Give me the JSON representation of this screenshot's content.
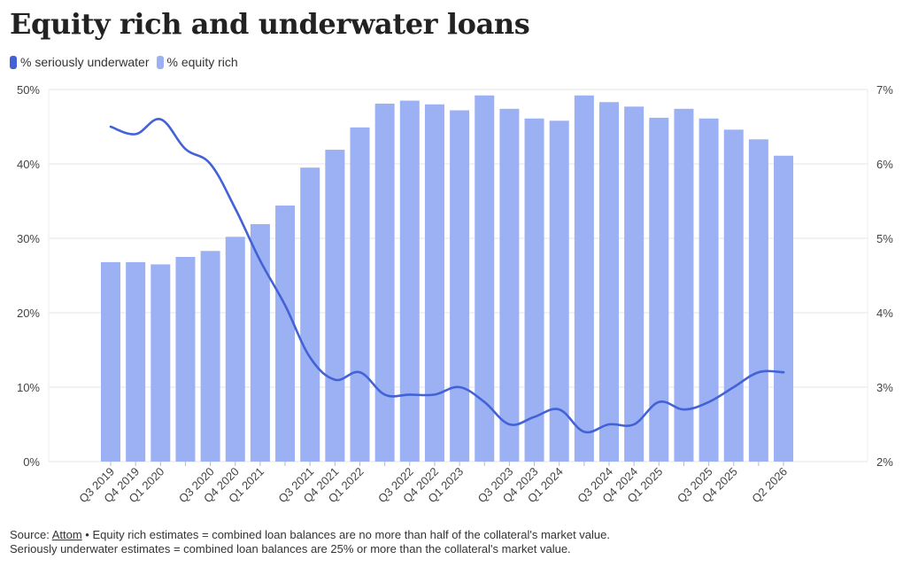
{
  "title": "Equity rich and underwater loans",
  "legend": [
    {
      "label": "% seriously underwater",
      "color": "#4262d6"
    },
    {
      "label": "% equity rich",
      "color": "#9cb0f4"
    }
  ],
  "footer": {
    "source_prefix": "Source: ",
    "source_name": "Attom",
    "line1_rest": " • Equity rich estimates = combined loan balances are no more than half of the collateral's market value.",
    "line2": "Seriously underwater estimates = combined loan balances are 25% or more than the collateral's market value."
  },
  "chart_data": {
    "type": "bar",
    "title": "Equity rich and underwater loans",
    "categories": [
      "Q3 2019",
      "Q4 2019",
      "Q1 2020",
      "Q2 2020",
      "Q3 2020",
      "Q4 2020",
      "Q1 2021",
      "Q2 2021",
      "Q3 2021",
      "Q4 2021",
      "Q1 2022",
      "Q2 2022",
      "Q3 2022",
      "Q4 2022",
      "Q1 2023",
      "Q2 2023",
      "Q3 2023",
      "Q4 2023",
      "Q1 2024",
      "Q2 2024",
      "Q3 2024",
      "Q4 2024",
      "Q1 2025",
      "Q2 2025",
      "Q3 2025",
      "Q4 2025",
      "Q1 2026",
      "Q2 2026"
    ],
    "x_tick_labels": [
      "Q3 2019",
      "Q4 2019",
      "Q1 2020",
      "",
      "Q3 2020",
      "Q4 2020",
      "Q1 2021",
      "",
      "Q3 2021",
      "Q4 2021",
      "Q1 2022",
      "",
      "Q3 2022",
      "Q4 2022",
      "Q1 2023",
      "",
      "Q3 2023",
      "Q4 2023",
      "Q1 2024",
      "",
      "Q3 2024",
      "Q4 2024",
      "Q1 2025",
      "",
      "Q3 2025",
      "Q4 2025",
      "",
      "Q2 2026"
    ],
    "series": [
      {
        "name": "% equity rich",
        "type": "bar",
        "axis": "left",
        "color": "#9cb0f4",
        "values": [
          26.8,
          26.8,
          26.5,
          27.5,
          28.3,
          30.2,
          31.9,
          34.4,
          39.5,
          41.9,
          44.9,
          48.1,
          48.5,
          48.0,
          47.2,
          49.2,
          47.4,
          46.1,
          45.8,
          49.2,
          48.3,
          47.7,
          46.2,
          47.4,
          46.1,
          44.6,
          43.3,
          41.1
        ]
      },
      {
        "name": "% seriously underwater",
        "type": "line",
        "axis": "right",
        "color": "#4262d6",
        "values": [
          6.5,
          6.4,
          6.6,
          6.2,
          6.0,
          5.4,
          4.7,
          4.1,
          3.4,
          3.1,
          3.2,
          2.9,
          2.9,
          2.9,
          3.0,
          2.8,
          2.5,
          2.6,
          2.7,
          2.4,
          2.5,
          2.5,
          2.8,
          2.7,
          2.8,
          3.0,
          3.2,
          3.2
        ]
      }
    ],
    "left_axis": {
      "ticks": [
        "0%",
        "10%",
        "20%",
        "30%",
        "40%",
        "50%"
      ],
      "range": [
        0,
        50
      ]
    },
    "right_axis": {
      "ticks": [
        "2%",
        "3%",
        "4%",
        "5%",
        "6%",
        "7%"
      ],
      "range": [
        2,
        7
      ]
    },
    "grid": true,
    "legend_position": "top-left"
  }
}
